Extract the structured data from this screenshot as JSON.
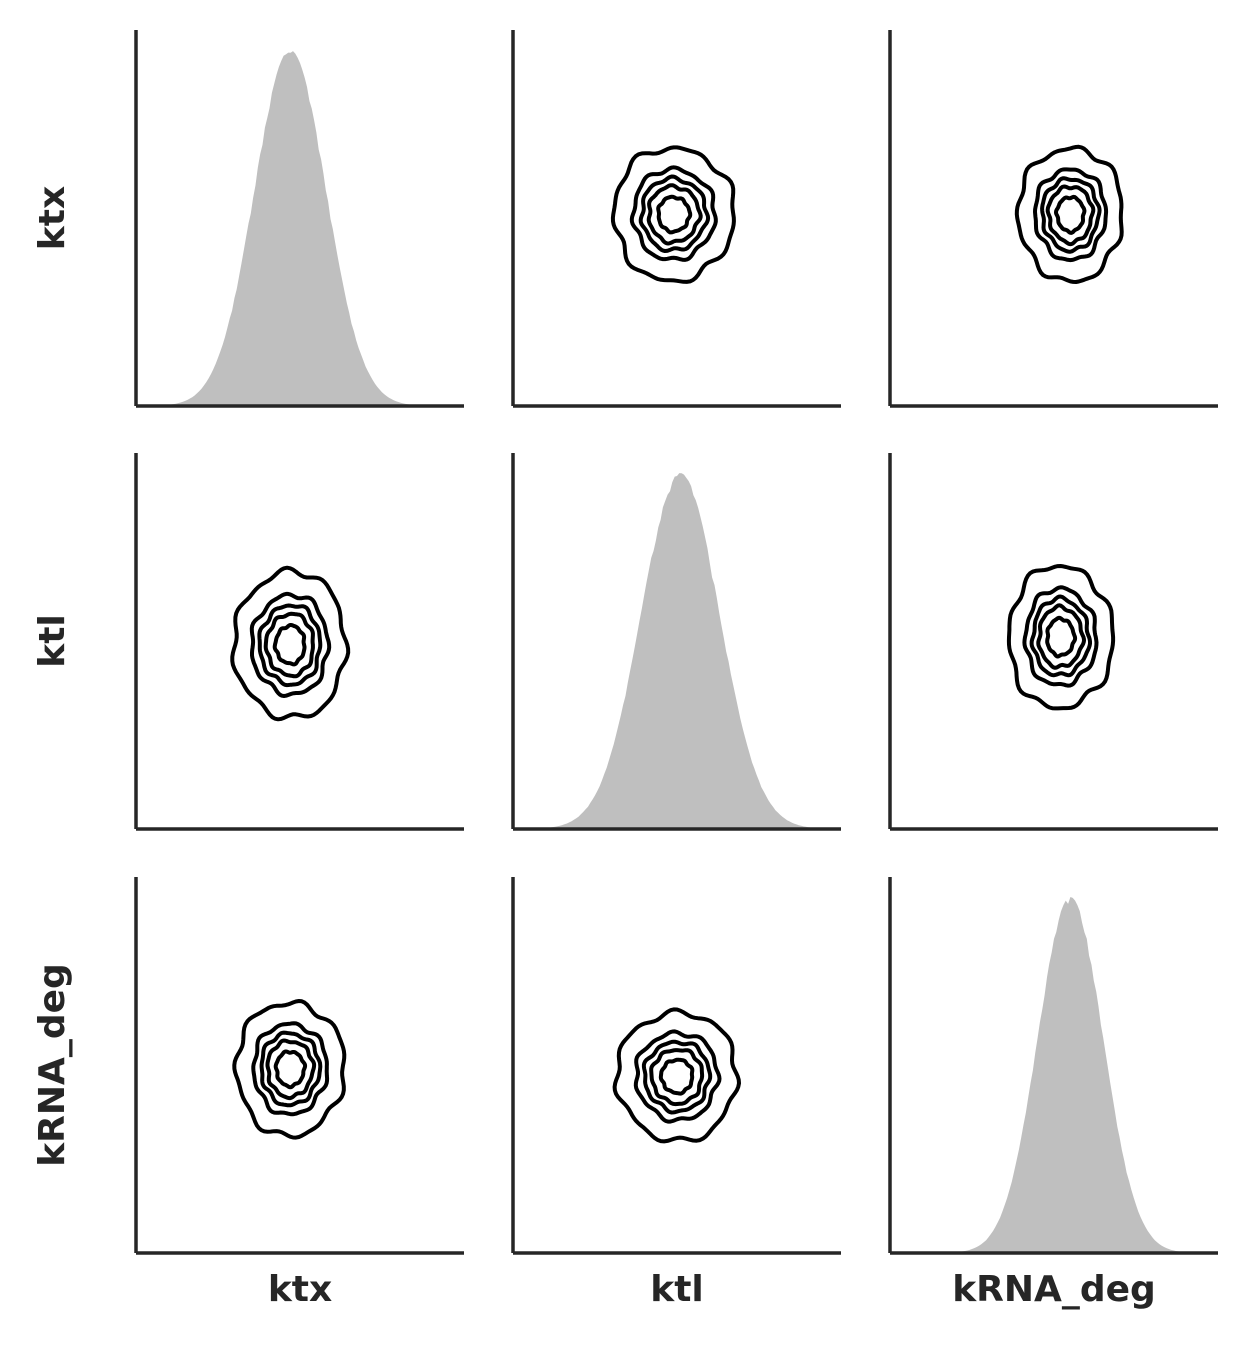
{
  "chart_data": {
    "type": "pairplot",
    "variables": [
      "ktx",
      "ktl",
      "kRNA_deg"
    ],
    "diagonal": "kde-filled",
    "off_diagonal": "kde-contour",
    "contour_levels": 5,
    "xlabels": [
      "ktx",
      "ktl",
      "kRNA_deg"
    ],
    "ylabels": [
      "ktx",
      "ktl",
      "kRNA_deg"
    ],
    "tick_labels_shown": false,
    "grid": false,
    "colors": {
      "axis": "#262626",
      "fill": "#bfbfbf",
      "contour": "#000000"
    },
    "panels": [
      {
        "row": 0,
        "col": 0,
        "kind": "kde",
        "peak": 0.47,
        "spread": 0.11
      },
      {
        "row": 0,
        "col": 1,
        "kind": "contour",
        "center": [
          0.49,
          0.49
        ],
        "spread": [
          0.3,
          0.29
        ]
      },
      {
        "row": 0,
        "col": 2,
        "kind": "contour",
        "center": [
          0.55,
          0.49
        ],
        "spread": [
          0.26,
          0.29
        ]
      },
      {
        "row": 1,
        "col": 0,
        "kind": "contour",
        "center": [
          0.47,
          0.51
        ],
        "spread": [
          0.28,
          0.32
        ]
      },
      {
        "row": 1,
        "col": 1,
        "kind": "kde",
        "peak": 0.51,
        "spread": 0.12
      },
      {
        "row": 1,
        "col": 2,
        "kind": "contour",
        "center": [
          0.52,
          0.49
        ],
        "spread": [
          0.26,
          0.31
        ]
      },
      {
        "row": 2,
        "col": 0,
        "kind": "contour",
        "center": [
          0.47,
          0.51
        ],
        "spread": [
          0.27,
          0.29
        ]
      },
      {
        "row": 2,
        "col": 1,
        "kind": "contour",
        "center": [
          0.5,
          0.53
        ],
        "spread": [
          0.3,
          0.28
        ]
      },
      {
        "row": 2,
        "col": 2,
        "kind": "kde",
        "peak": 0.55,
        "spread": 0.1
      }
    ]
  }
}
